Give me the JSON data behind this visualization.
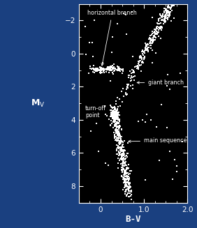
{
  "background_color": "#000000",
  "outer_background": "#1a4080",
  "point_color": "#ffffff",
  "text_color": "#ffffff",
  "spine_color": "#ffffff",
  "xlim": [
    -0.5,
    2.0
  ],
  "ylim": [
    9.0,
    -3.0
  ],
  "xticks": [
    0.0,
    1.0,
    2.0
  ],
  "xtick_labels": [
    "0",
    "1.0",
    "2.0"
  ],
  "yticks": [
    -2,
    0,
    2,
    4,
    6,
    8
  ],
  "xlabel": "B-V",
  "ylabel": "M_V",
  "figsize": [
    2.82,
    3.27
  ],
  "dpi": 100
}
